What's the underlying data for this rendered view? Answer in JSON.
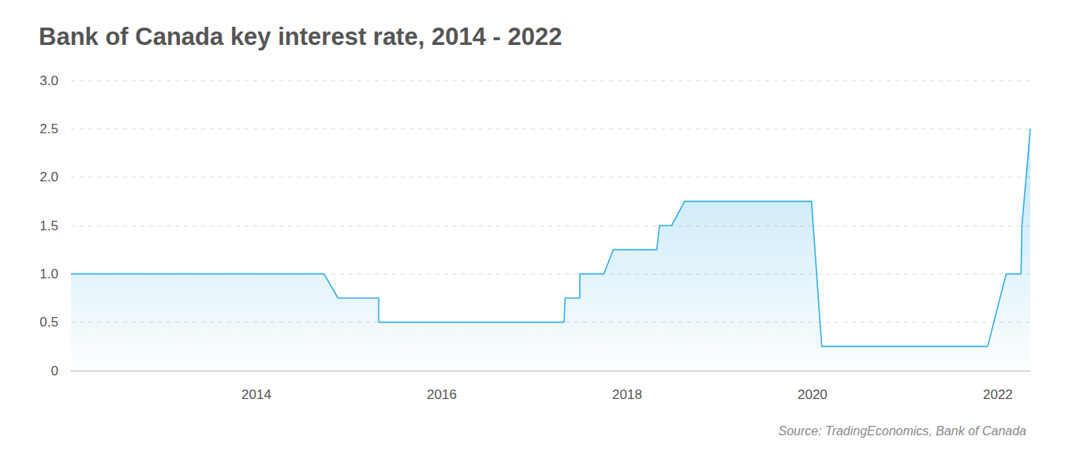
{
  "chart_data": {
    "type": "line",
    "title": "Bank of Canada key interest rate, 2014 - 2022",
    "source": "Source: TradingEconomics, Bank of Canada",
    "x": [
      2012.0,
      2014.73,
      2014.88,
      2015.32,
      2015.32,
      2017.32,
      2017.33,
      2017.49,
      2017.49,
      2017.75,
      2017.85,
      2018.32,
      2018.35,
      2018.48,
      2018.62,
      2019.99,
      2020.1,
      2021.89,
      2022.09,
      2022.25,
      2022.26,
      2022.35
    ],
    "values": [
      1.0,
      1.0,
      0.75,
      0.75,
      0.5,
      0.5,
      0.75,
      0.75,
      1.0,
      1.0,
      1.25,
      1.25,
      1.5,
      1.5,
      1.75,
      1.75,
      0.25,
      0.25,
      1.0,
      1.0,
      1.5,
      2.5
    ],
    "color": "#35aee8",
    "xlim": [
      2012.0,
      2022.35
    ],
    "xticks": [
      2014,
      2016,
      2018,
      2020,
      2022
    ],
    "ylim": [
      0,
      3.0
    ],
    "yticks": [
      0,
      0.5,
      {
        "value": 1.0,
        "label": "1.0"
      },
      1.5,
      {
        "value": 2.0,
        "label": "2.0"
      },
      2.5,
      {
        "value": 3.0,
        "label": "3.0"
      }
    ],
    "grid": true
  }
}
